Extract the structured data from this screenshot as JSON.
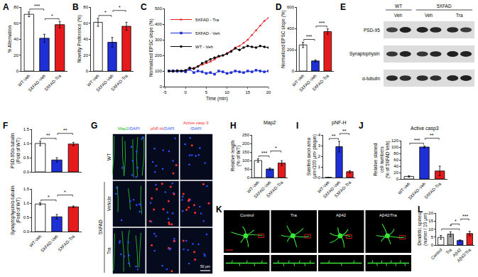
{
  "chart_data": [
    {
      "panel": "A",
      "type": "bar",
      "categories": [
        "WT-Veh",
        "5XFAD-Veh",
        "5XFAD-Tra"
      ],
      "values": [
        71,
        41,
        58
      ],
      "errors": [
        3,
        5,
        4
      ],
      "colors": [
        "#ffffff",
        "#1f2fd6",
        "#e41a1c"
      ],
      "y_label": "% Alternation",
      "ylim": [
        0,
        80
      ],
      "yticks": [
        0,
        20,
        40,
        60,
        80
      ],
      "significance": [
        {
          "pair": [
            0,
            1
          ],
          "text": "***"
        },
        {
          "pair": [
            1,
            2
          ],
          "text": "*"
        }
      ]
    },
    {
      "panel": "B",
      "type": "bar",
      "categories": [
        "WT-Veh",
        "5XFAD-Veh",
        "5XFAD-Tra"
      ],
      "values": [
        61,
        36,
        56
      ],
      "errors": [
        5,
        6,
        5
      ],
      "colors": [
        "#ffffff",
        "#1f2fd6",
        "#e41a1c"
      ],
      "y_label": "Novelty Preference (%)",
      "ylim": [
        0,
        80
      ],
      "yticks": [
        0,
        20,
        40,
        60,
        80
      ],
      "significance": [
        {
          "pair": [
            0,
            1
          ],
          "text": "*"
        },
        {
          "pair": [
            1,
            2
          ],
          "text": "*"
        }
      ]
    },
    {
      "panel": "C",
      "type": "line",
      "x": [
        -4,
        -3,
        -2,
        -1,
        0,
        1,
        2,
        3,
        4,
        5,
        6,
        7,
        8,
        9,
        10,
        11,
        12,
        13,
        14,
        15,
        16,
        17,
        18,
        19,
        20
      ],
      "series": [
        {
          "name": "5XFAD - Tra",
          "color": "#e41a1c",
          "marker": "triangle",
          "values": [
            100,
            95,
            105,
            100,
            100,
            110,
            120,
            130,
            140,
            150,
            160,
            175,
            190,
            200,
            215,
            230,
            250,
            260,
            280,
            300,
            330,
            360,
            390,
            420,
            440
          ]
        },
        {
          "name": "5XFAD - Veh",
          "color": "#1f2fd6",
          "marker": "square",
          "values": [
            100,
            102,
            98,
            100,
            95,
            110,
            90,
            100,
            95,
            85,
            90,
            80,
            100,
            95,
            85,
            90,
            100,
            95,
            90,
            100,
            95,
            105,
            100,
            95,
            100
          ]
        },
        {
          "name": "WT - Veh",
          "color": "#000000",
          "marker": "circle",
          "values": [
            100,
            98,
            102,
            100,
            105,
            120,
            115,
            130,
            150,
            160,
            175,
            185,
            195,
            200,
            210,
            225,
            245,
            235,
            250,
            260,
            255,
            250,
            260,
            255,
            250
          ]
        }
      ],
      "x_label": "Time (min)",
      "y_label": "Normalized EPSC slope (%)",
      "xlim": [
        -5,
        20
      ],
      "xticks": [
        -5,
        0,
        5,
        10,
        15,
        20
      ],
      "ylim": [
        0,
        500
      ],
      "yticks": [
        0,
        100,
        200,
        300,
        400,
        500
      ],
      "legend": "upper left"
    },
    {
      "panel": "D",
      "type": "bar",
      "categories": [
        "WT-Veh",
        "5XFAD-Veh",
        "5XFAD-Tra"
      ],
      "values": [
        245,
        95,
        370
      ],
      "errors": [
        25,
        10,
        25
      ],
      "colors": [
        "#ffffff",
        "#1f2fd6",
        "#e41a1c"
      ],
      "y_label": "Normalized EPSC slope (%)",
      "ylim": [
        0,
        600
      ],
      "yticks": [
        0,
        200,
        400,
        600
      ],
      "significance": [
        {
          "pair": [
            0,
            1
          ],
          "text": "***"
        },
        {
          "pair": [
            1,
            2
          ],
          "text": "***"
        }
      ]
    },
    {
      "panel": "F",
      "type": "bar",
      "categories": [
        "WT-Veh",
        "5XFAD-Veh",
        "5XFAD-Tra"
      ],
      "values": [
        1.0,
        0.42,
        0.98
      ],
      "errors": [
        0.08,
        0.08,
        0.06
      ],
      "colors": [
        "#ffffff",
        "#1f2fd6",
        "#e41a1c"
      ],
      "y_label": "PSD-95/α-tubulin\n(Fold of WT)",
      "ylim": [
        0,
        1.5
      ],
      "yticks": [
        {
          "value": 0,
          "label": "0.0"
        },
        0.5,
        {
          "value": 1,
          "label": "1.0"
        },
        1.5
      ],
      "tick_labels": "y",
      "significance": [
        {
          "pair": [
            0,
            1
          ],
          "text": "**"
        },
        {
          "pair": [
            1,
            2
          ],
          "text": "**"
        }
      ]
    },
    {
      "type": "bar",
      "categories": [
        "WT-Veh",
        "5XFAD-Veh",
        "5XFAD-Tra"
      ],
      "values": [
        0.97,
        0.52,
        0.87
      ],
      "errors": [
        0.04,
        0.08,
        0.03
      ],
      "colors": [
        "#ffffff",
        "#1f2fd6",
        "#e41a1c"
      ],
      "y_label": "Synaptophysin/α-tubulin\n(Fold of WT)",
      "ylim": [
        0,
        1.5
      ],
      "yticks": [
        {
          "value": 0,
          "label": "0.0"
        },
        0.5,
        {
          "value": 1,
          "label": "1.0"
        },
        1.5
      ],
      "significance": [
        {
          "pair": [
            0,
            1
          ],
          "text": "*"
        },
        {
          "pair": [
            1,
            2
          ],
          "text": "*"
        }
      ]
    },
    {
      "panel": "H",
      "type": "bar",
      "title": "Map2",
      "categories": [
        "WT-Veh",
        "5XFAD-Veh",
        "5XFAD-Tra"
      ],
      "values": [
        100,
        50,
        85
      ],
      "errors": [
        10,
        6,
        14
      ],
      "colors": [
        "#ffffff",
        "#1f2fd6",
        "#e41a1c"
      ],
      "y_label": "Relative length\n(% of WT)",
      "ylim": [
        0,
        250
      ],
      "yticks": [
        0,
        50,
        100,
        150,
        200,
        250
      ],
      "significance": [
        {
          "pair": [
            0,
            1
          ],
          "text": "***"
        },
        {
          "pair": [
            1,
            2
          ],
          "text": "*"
        }
      ]
    },
    {
      "panel": "I",
      "type": "bar",
      "title": "pNF-H",
      "categories": [
        "WT-Veh",
        "5XFAD-Veh",
        "5XFAD-Tra"
      ],
      "values": [
        0.02,
        2.9,
        0.55
      ],
      "errors": [
        0.01,
        0.5,
        0.1
      ],
      "colors": [
        "#ffffff",
        "#1f2fd6",
        "#e41a1c"
      ],
      "y_label": "Swollen axon area\n(μm²/100 μm² plaque)",
      "ylim": [
        0,
        4
      ],
      "yticks": [
        0,
        1,
        2,
        3,
        4
      ],
      "significance": [
        {
          "pair": [
            0,
            1
          ],
          "text": "**"
        },
        {
          "pair": [
            1,
            2
          ],
          "text": "**"
        }
      ]
    },
    {
      "panel": "J",
      "type": "bar",
      "title": "Active casp3",
      "categories": [
        "WT-Veh",
        "5XFAD-Veh",
        "5XFAD-Tra"
      ],
      "values": [
        8,
        100,
        25
      ],
      "errors": [
        2,
        3,
        15
      ],
      "colors": [
        "#ffffff",
        "#1f2fd6",
        "#e41a1c"
      ],
      "y_label": "Relative stained\ncell numbers\n(% of 5XFAD Veh)",
      "ylim": [
        0,
        120
      ],
      "yticks": [
        0,
        20,
        40,
        60,
        80,
        100,
        120
      ],
      "significance": [
        {
          "pair": [
            0,
            1
          ],
          "text": "***"
        },
        {
          "pair": [
            1,
            2
          ],
          "text": "**"
        }
      ]
    },
    {
      "panel": "L",
      "type": "bar",
      "categories": [
        "Control",
        "Tra",
        "Aβ42",
        "Aβ42/Tra"
      ],
      "values": [
        4.8,
        6.8,
        2.8,
        7.2
      ],
      "errors": [
        1.2,
        1.5,
        0.4,
        1.4
      ],
      "colors": [
        "#ffffff",
        "#a6a6a6",
        "#1f2fd6",
        "#e41a1c"
      ],
      "y_label": "Dendritic spines\n(numer / 10 μm)",
      "ylim": [
        0,
        20
      ],
      "yticks": [
        0,
        5,
        10,
        15,
        20
      ],
      "significance": [
        {
          "pair": [
            0,
            2
          ],
          "text": "*"
        },
        {
          "pair": [
            1,
            2
          ],
          "text": "*"
        },
        {
          "pair": [
            2,
            3
          ],
          "text": "***"
        }
      ]
    }
  ],
  "blot": {
    "panel": "E",
    "groups": [
      {
        "label": "WT",
        "lanes": [
          "Veh"
        ]
      },
      {
        "label": "5XFAD",
        "lanes": [
          "Veh",
          "Tra"
        ]
      }
    ],
    "rows": [
      "PSD-95",
      "Synaptophysin",
      "α-tubulin"
    ]
  },
  "micrographs": {
    "panel": "G",
    "columns": [
      [
        "Map2",
        "/DAPI"
      ],
      [
        "pNF-H",
        "/DAPI"
      ],
      [
        "Active casp 3",
        "/DAPI"
      ]
    ],
    "rows": [
      "WT",
      "Vehicle",
      "Tra"
    ],
    "row_group": "5XFAD",
    "scale_bar": "50 μm"
  },
  "neurons": {
    "panel": "K",
    "columns": [
      "Control",
      "Tra",
      "Aβ42",
      "Aβ42/Tra"
    ]
  }
}
